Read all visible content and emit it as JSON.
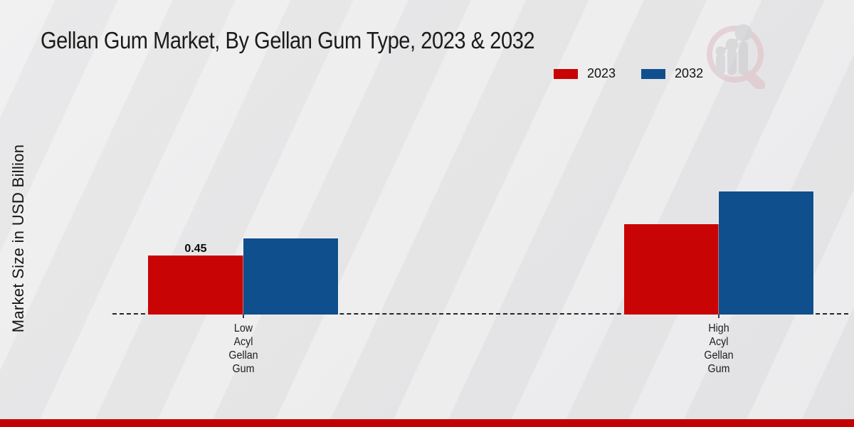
{
  "title": "Gellan Gum Market, By Gellan Gum Type, 2023 & 2032",
  "y_axis_label": "Market Size in USD Billion",
  "legend": {
    "items": [
      {
        "label": "2023",
        "color": "#c80404"
      },
      {
        "label": "2032",
        "color": "#0f4f8d"
      }
    ]
  },
  "footer": {
    "band_color": "#c20202"
  },
  "watermark": {
    "name": "market-research-logo",
    "glass_color": "#ddb9bf",
    "bars_color": "#c7c7cc"
  },
  "chart_data": {
    "type": "bar",
    "categories": [
      "Low\nAcyl\nGellan\nGum",
      "High\nAcyl\nGellan\nGum"
    ],
    "series": [
      {
        "name": "2023",
        "color": "#c80404",
        "values": [
          0.45,
          0.69
        ],
        "value_labels": [
          "0.45",
          ""
        ]
      },
      {
        "name": "2032",
        "color": "#0f4f8d",
        "values": [
          0.58,
          0.94
        ],
        "value_labels": [
          "",
          ""
        ]
      }
    ],
    "title": "Gellan Gum Market, By Gellan Gum Type, 2023 & 2032",
    "xlabel": "",
    "ylabel": "Market Size in USD Billion",
    "ylim": [
      0,
      1.0
    ],
    "grid": false,
    "baseline_style": "dashed",
    "legend_position": "top-right"
  }
}
